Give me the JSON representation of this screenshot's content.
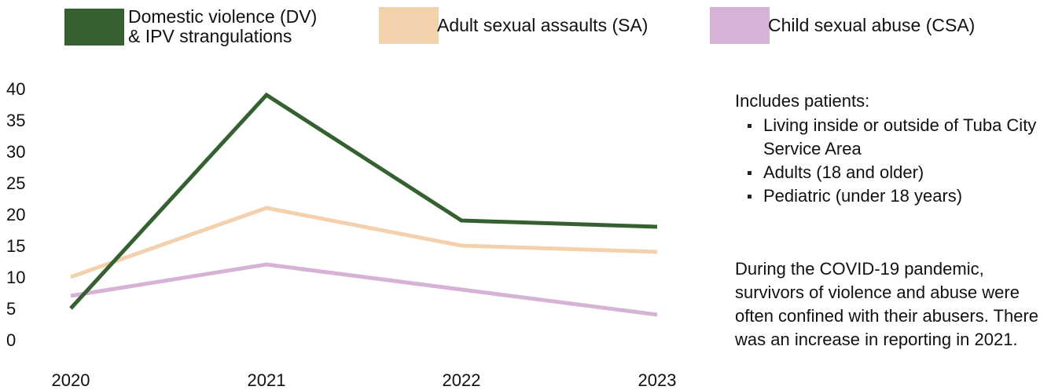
{
  "legend": {
    "items": [
      {
        "label": "Domestic violence (DV)\n& IPV strangulations",
        "color": "#356130"
      },
      {
        "label": "Adult sexual assaults (SA)",
        "color": "#f3d1ad"
      },
      {
        "label": "Child sexual abuse (CSA)",
        "color": "#d5b2d6"
      }
    ]
  },
  "notes": {
    "heading": "Includes patients:",
    "bullets": [
      "Living inside or outside of Tuba City Service Area",
      "Adults (18 and older)",
      "Pediatric (under 18 years)"
    ],
    "paragraph": "During the COVID-19 pandemic, survivors of violence and abuse were often confined with their abusers. There was an increase in reporting in 2021."
  },
  "chart_data": {
    "type": "line",
    "title": "",
    "xlabel": "",
    "ylabel": "",
    "categories": [
      "2020",
      "2021",
      "2022",
      "2023"
    ],
    "ylim": [
      0,
      40
    ],
    "yticks": [
      0,
      5,
      10,
      15,
      20,
      25,
      30,
      35,
      40
    ],
    "grid": false,
    "legend_position": "top",
    "series": [
      {
        "name": "Domestic violence (DV) & IPV strangulations",
        "values": [
          5,
          39,
          19,
          18
        ],
        "color": "#356130"
      },
      {
        "name": "Adult sexual assaults (SA)",
        "values": [
          10,
          21,
          15,
          14
        ],
        "color": "#f3d1ad"
      },
      {
        "name": "Child sexual abuse (CSA)",
        "values": [
          7,
          12,
          8,
          4
        ],
        "color": "#d5b2d6"
      }
    ]
  }
}
